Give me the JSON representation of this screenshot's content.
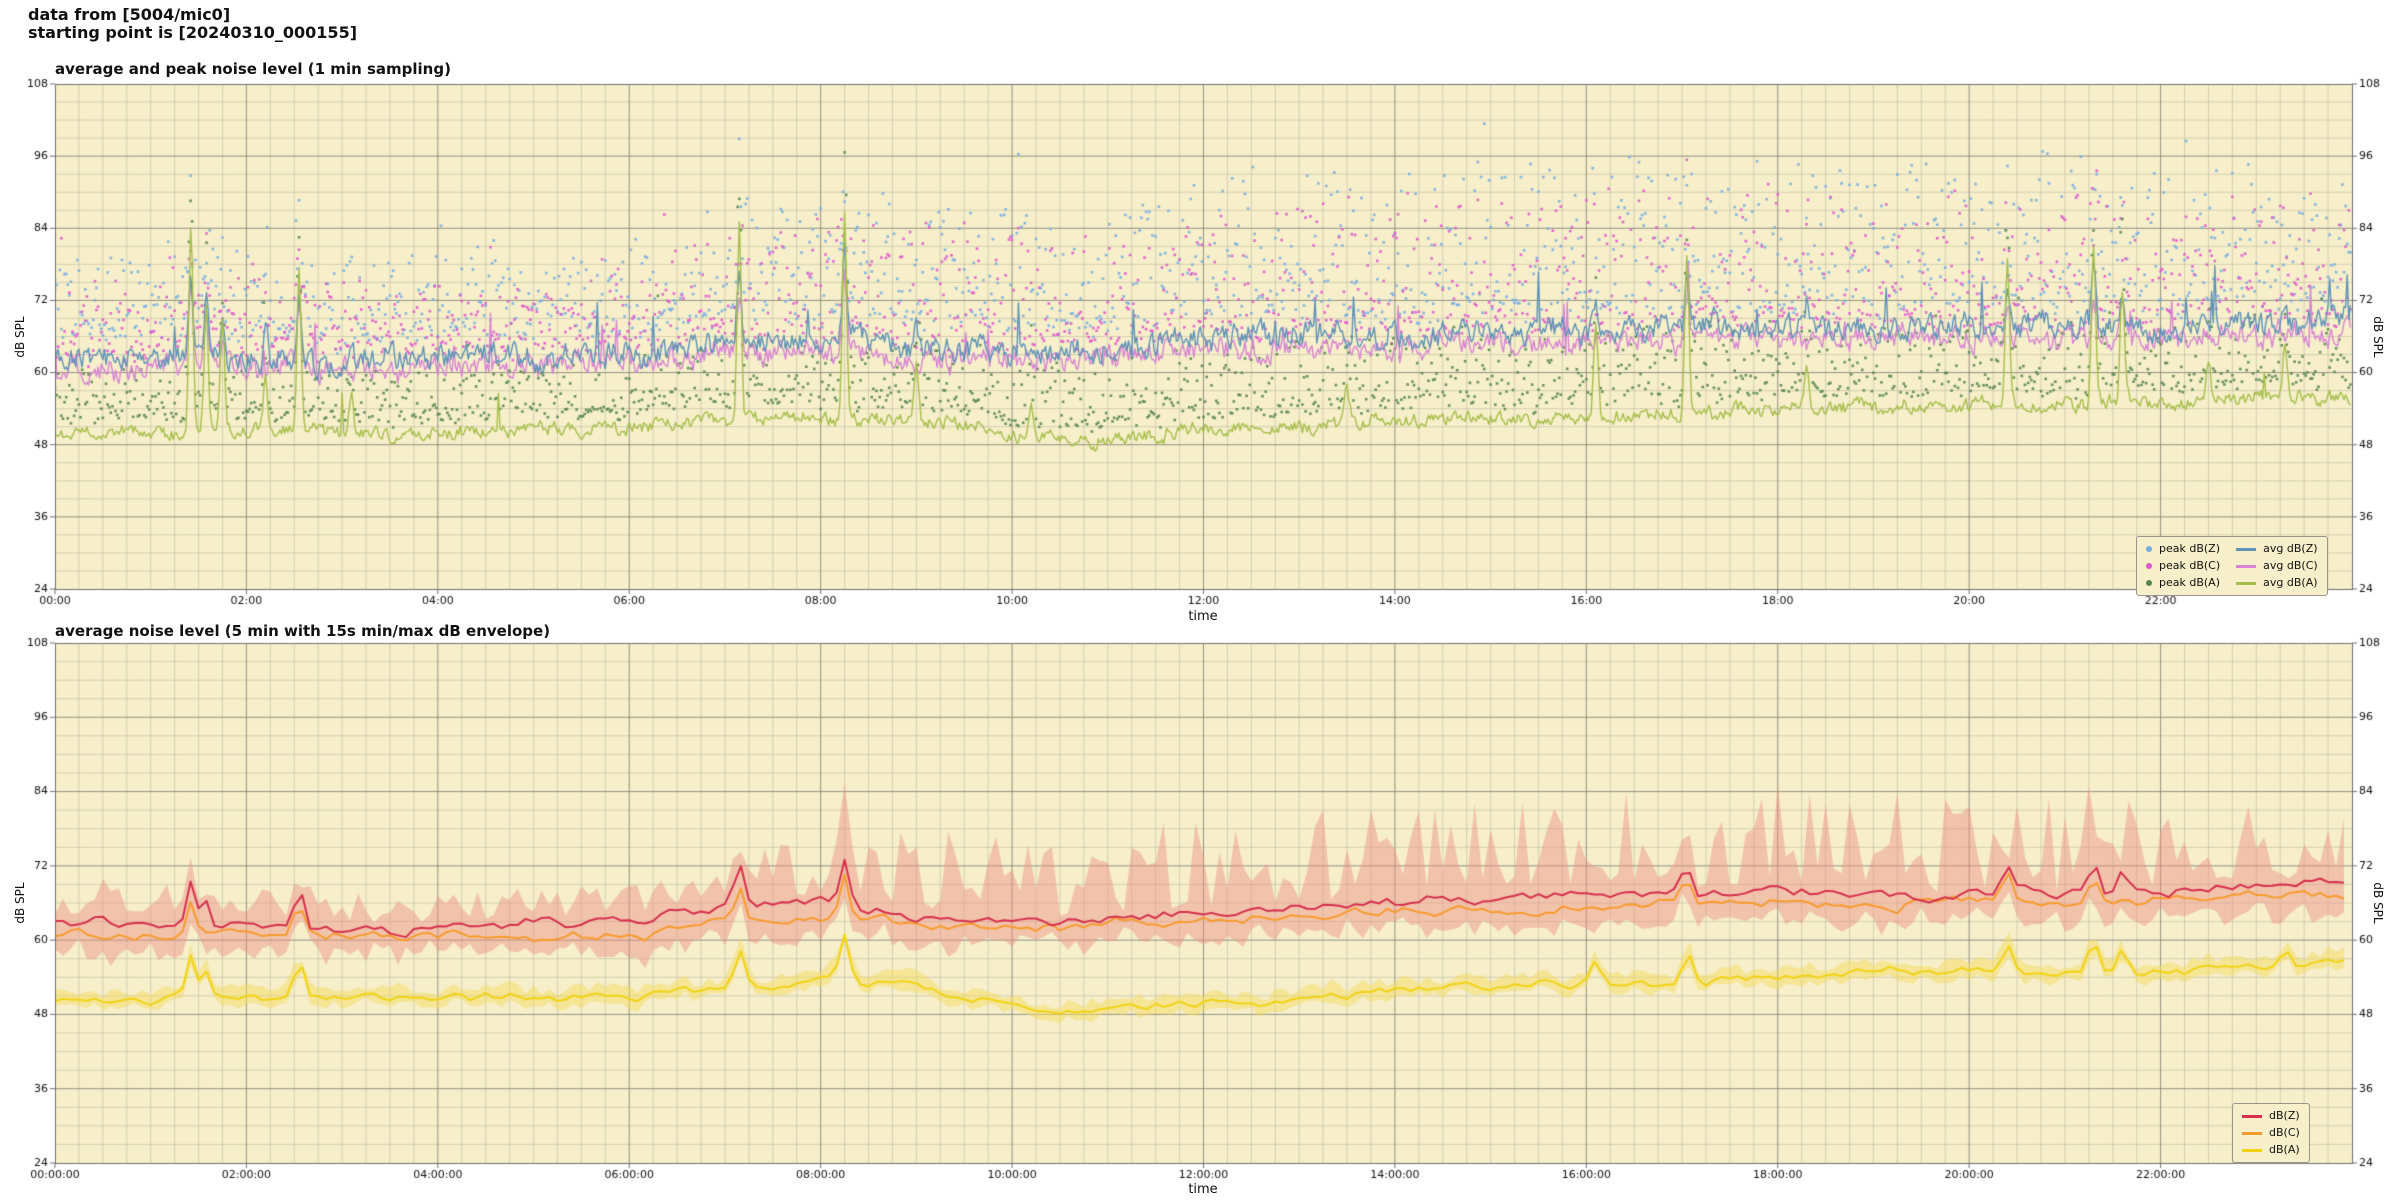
{
  "header": {
    "line1": "data from [5004/mic0]",
    "line2": "starting point is [20240310_000155]"
  },
  "colors": {
    "plot_bg": "#f6efca",
    "grid_major": "rgba(125,122,110,0.8)",
    "grid_minor": "rgba(172,168,150,0.45)",
    "spine": "#6e6e6e",
    "tick_text": "#111111"
  },
  "chart_data": [
    {
      "type": "line+scatter",
      "title": "average and peak noise level (1 min sampling)",
      "xlabel": "time",
      "ylabel_left": "dB SPL",
      "ylabel_right": "dB SPL",
      "ylim": [
        24,
        108
      ],
      "yticks": [
        24,
        36,
        48,
        60,
        72,
        84,
        96,
        108
      ],
      "xtick_hours": [
        0,
        2,
        4,
        6,
        8,
        10,
        12,
        14,
        16,
        18,
        20,
        22
      ],
      "xtick_labels": [
        "00:00",
        "02:00",
        "04:00",
        "06:00",
        "08:00",
        "10:00",
        "12:00",
        "14:00",
        "16:00",
        "18:00",
        "20:00",
        "22:00"
      ],
      "sampling_minutes": 1,
      "grid": true,
      "legend_position": "lower right",
      "series": [
        {
          "name": "avg dB(Z)",
          "kind": "line",
          "color": "#5e93b8",
          "noise": 2.4,
          "slow": 0.6,
          "burst": 0.012,
          "anchors": [
            63.2,
            62.6,
            62.8,
            62.3,
            62.2,
            62.4,
            63.2,
            64.6,
            65.2,
            63.9,
            63.4,
            63.9,
            64.9,
            65.9,
            66.4,
            66.9,
            66.9,
            67.3,
            67.9,
            67.4,
            67.9,
            67.9,
            67.9,
            68.3,
            69.0
          ],
          "spikes": [
            [
              1.42,
              14
            ],
            [
              1.58,
              8
            ],
            [
              1.75,
              6
            ],
            [
              2.2,
              5
            ],
            [
              2.55,
              13
            ],
            [
              7.15,
              12
            ],
            [
              8.25,
              15
            ],
            [
              9.0,
              5
            ],
            [
              16.1,
              6
            ],
            [
              17.05,
              9
            ],
            [
              18.3,
              4
            ],
            [
              20.4,
              8
            ],
            [
              21.3,
              9
            ],
            [
              21.6,
              6
            ],
            [
              23.3,
              5
            ]
          ]
        },
        {
          "name": "avg dB(C)",
          "kind": "line",
          "color": "#d884d4",
          "noise": 2.2,
          "slow": 0.6,
          "burst": 0.01,
          "anchors": [
            61.2,
            60.8,
            61.0,
            60.6,
            60.5,
            60.7,
            61.4,
            62.9,
            63.4,
            62.3,
            61.9,
            62.3,
            63.3,
            64.1,
            64.7,
            65.1,
            65.1,
            65.5,
            65.9,
            65.5,
            66.0,
            66.0,
            66.1,
            66.4,
            66.9
          ],
          "spikes": [
            [
              1.42,
              12
            ],
            [
              1.58,
              7
            ],
            [
              1.75,
              5
            ],
            [
              2.55,
              11
            ],
            [
              7.15,
              10
            ],
            [
              8.25,
              13
            ],
            [
              17.05,
              8
            ],
            [
              20.4,
              7
            ],
            [
              21.3,
              8
            ],
            [
              21.6,
              5
            ]
          ]
        },
        {
          "name": "avg dB(A)",
          "kind": "line",
          "color": "#a6bf4b",
          "noise": 1.3,
          "slow": 0.5,
          "burst": 0.004,
          "anchors": [
            50.2,
            49.9,
            50.4,
            50.1,
            50.0,
            50.5,
            51.1,
            52.1,
            52.9,
            51.9,
            49.6,
            48.7,
            50.4,
            51.1,
            52.1,
            52.6,
            53.1,
            53.3,
            54.1,
            54.1,
            54.3,
            54.7,
            55.1,
            55.6,
            56.1
          ],
          "spikes": [
            [
              1.42,
              34
            ],
            [
              1.58,
              20
            ],
            [
              1.75,
              17
            ],
            [
              2.2,
              10
            ],
            [
              2.55,
              26
            ],
            [
              3.1,
              7
            ],
            [
              7.15,
              33
            ],
            [
              8.25,
              34
            ],
            [
              9.0,
              9
            ],
            [
              10.2,
              5
            ],
            [
              13.5,
              5
            ],
            [
              16.1,
              15
            ],
            [
              17.05,
              26
            ],
            [
              18.3,
              7
            ],
            [
              20.4,
              24
            ],
            [
              21.3,
              27
            ],
            [
              21.6,
              19
            ],
            [
              22.5,
              7
            ],
            [
              23.3,
              9
            ]
          ]
        },
        {
          "name": "peak dB(Z)",
          "kind": "scatter",
          "color": "#74aee3",
          "base_series": "avg dB(Z)",
          "base_offset": 4,
          "spread": [
            13,
            15,
            15,
            13,
            13,
            13,
            15,
            19,
            21,
            21,
            21,
            21,
            23,
            23,
            23,
            23,
            23,
            23,
            23,
            23,
            23,
            23,
            23,
            21,
            19
          ]
        },
        {
          "name": "peak dB(C)",
          "kind": "scatter",
          "color": "#e056cf",
          "base_series": "avg dB(C)",
          "base_offset": 3,
          "spread": [
            11,
            13,
            13,
            11,
            11,
            11,
            13,
            17,
            19,
            19,
            19,
            19,
            21,
            21,
            21,
            21,
            21,
            21,
            21,
            21,
            21,
            21,
            21,
            19,
            17
          ]
        },
        {
          "name": "peak dB(A)",
          "kind": "scatter",
          "color": "#55884f",
          "base_series": "avg dB(A)",
          "base_offset": 2.5,
          "spread": [
            8,
            8,
            8,
            8,
            8,
            8,
            9,
            10,
            11,
            11,
            11,
            11,
            12,
            12,
            12,
            12,
            12,
            12,
            12,
            12,
            12,
            12,
            12,
            11,
            10
          ]
        }
      ]
    },
    {
      "type": "line",
      "title": "average noise level (5 min with 15s min/max dB envelope)",
      "xlabel": "time",
      "ylabel_left": "dB SPL",
      "ylabel_right": "dB SPL",
      "ylim": [
        24,
        108
      ],
      "yticks": [
        24,
        36,
        48,
        60,
        72,
        84,
        96,
        108
      ],
      "xtick_hours": [
        0,
        2,
        4,
        6,
        8,
        10,
        12,
        14,
        16,
        18,
        20,
        22
      ],
      "xtick_labels": [
        "00:00:00",
        "02:00:00",
        "04:00:00",
        "06:00:00",
        "08:00:00",
        "10:00:00",
        "12:00:00",
        "14:00:00",
        "16:00:00",
        "18:00:00",
        "20:00:00",
        "22:00:00"
      ],
      "sampling_minutes": 5,
      "grid": true,
      "legend_position": "lower right",
      "envelope": {
        "label": "15s min/max envelope",
        "color": "rgba(238,142,134,0.45)",
        "yellow_color": "rgba(243,219,95,0.5)",
        "min_drop": 3.5,
        "max_extra": [
          5,
          6,
          7,
          6,
          5,
          5,
          6,
          9,
          12,
          13,
          13,
          13,
          14,
          15,
          15,
          16,
          16,
          16,
          16,
          16,
          15,
          15,
          14,
          13,
          12
        ]
      },
      "series": [
        {
          "name": "dB(Z)",
          "kind": "line",
          "color": "#d6304d",
          "noise": 0.9,
          "slow": 0.55,
          "anchors": [
            63.2,
            62.6,
            62.8,
            62.3,
            62.2,
            62.4,
            63.2,
            64.6,
            65.2,
            63.9,
            63.4,
            63.9,
            64.9,
            65.9,
            66.4,
            66.9,
            66.9,
            67.3,
            67.9,
            67.4,
            67.9,
            67.9,
            67.9,
            68.3,
            69.0
          ],
          "spikes": [
            [
              1.42,
              7
            ],
            [
              1.58,
              4
            ],
            [
              2.55,
              6
            ],
            [
              7.15,
              7
            ],
            [
              8.25,
              8
            ],
            [
              17.05,
              5
            ],
            [
              20.4,
              4
            ],
            [
              21.3,
              5
            ],
            [
              21.6,
              3
            ]
          ]
        },
        {
          "name": "dB(C)",
          "kind": "line",
          "color": "#f79b2e",
          "noise": 0.9,
          "slow": 0.55,
          "anchors": [
            61.2,
            60.8,
            61.0,
            60.6,
            60.5,
            60.7,
            61.4,
            62.9,
            63.4,
            62.3,
            61.9,
            62.3,
            63.3,
            64.1,
            64.7,
            65.1,
            65.1,
            65.5,
            65.9,
            65.5,
            66.0,
            66.0,
            66.1,
            66.4,
            66.9
          ],
          "spikes": [
            [
              1.42,
              6
            ],
            [
              2.55,
              5
            ],
            [
              7.15,
              6
            ],
            [
              8.25,
              7
            ],
            [
              17.05,
              4
            ],
            [
              20.4,
              4
            ],
            [
              21.3,
              4
            ]
          ]
        },
        {
          "name": "dB(A)",
          "kind": "line",
          "color": "#f2d313",
          "noise": 0.7,
          "slow": 0.5,
          "anchors": [
            50.2,
            49.9,
            50.4,
            50.1,
            50.0,
            50.5,
            51.1,
            52.1,
            52.9,
            51.9,
            49.6,
            48.7,
            50.4,
            51.1,
            52.1,
            52.6,
            53.1,
            53.3,
            54.1,
            54.1,
            54.3,
            54.7,
            55.1,
            55.6,
            56.1
          ],
          "spikes": [
            [
              1.42,
              6.5
            ],
            [
              1.58,
              4
            ],
            [
              2.55,
              5.5
            ],
            [
              7.15,
              6.5
            ],
            [
              8.25,
              7
            ],
            [
              16.1,
              3
            ],
            [
              17.05,
              5
            ],
            [
              20.4,
              4.5
            ],
            [
              21.3,
              5
            ],
            [
              21.6,
              4
            ],
            [
              23.3,
              3
            ]
          ]
        }
      ]
    }
  ]
}
